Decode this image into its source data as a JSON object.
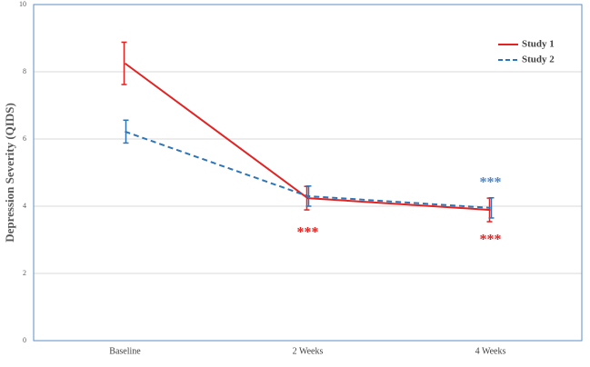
{
  "chart_data": {
    "type": "line",
    "y_label": "Depression Severity (QIDS)",
    "categories": [
      "Baseline",
      "2 Weeks",
      "4 Weeks"
    ],
    "series": [
      {
        "name": "Study 1",
        "color": "#e32222",
        "dash": false,
        "values": [
          8.25,
          4.24,
          3.89
        ],
        "errors": [
          0.63,
          0.35,
          0.35
        ]
      },
      {
        "name": "Study 2",
        "color": "#2e75b6",
        "dash": true,
        "values": [
          6.22,
          4.3,
          3.95
        ],
        "errors": [
          0.34,
          0.3,
          0.3
        ]
      }
    ],
    "annotations": [
      {
        "text": "***",
        "color": "#e32222"
      },
      {
        "text": "***",
        "color": "#e32222"
      },
      {
        "text": "***",
        "color": "#4a86d0"
      }
    ],
    "ylim": [
      0,
      10
    ],
    "yticks": [
      0,
      2,
      4,
      6,
      8,
      10
    ],
    "grid": true,
    "legend": "top-right"
  }
}
